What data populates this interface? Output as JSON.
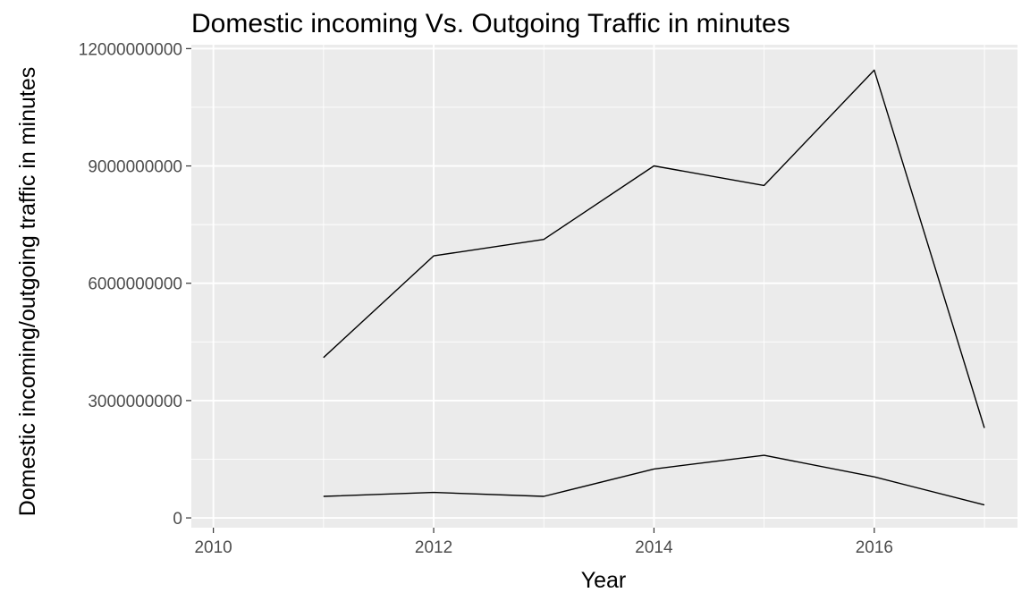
{
  "chart_data": {
    "type": "line",
    "title": "Domestic incoming Vs. Outgoing Traffic in minutes",
    "xlabel": "Year",
    "ylabel": "Domestic incoming/outgoing traffic in minutes",
    "xlim": [
      2009.8,
      2017.3
    ],
    "ylim": [
      -250000000,
      12100000000
    ],
    "x_ticks": [
      2010,
      2012,
      2014,
      2016
    ],
    "y_ticks": [
      0,
      3000000000,
      6000000000,
      9000000000,
      12000000000
    ],
    "x_tick_labels": [
      "2010",
      "2012",
      "2014",
      "2016"
    ],
    "y_tick_labels": [
      "0",
      "3000000000",
      "6000000000",
      "9000000000",
      "12000000000"
    ],
    "grid": true,
    "colors": {
      "panel": "#ebebeb",
      "grid": "#ffffff",
      "line": "#000000",
      "tick_text": "#4d4d4d"
    },
    "series": [
      {
        "x": [
          2011,
          2012,
          2013,
          2014,
          2015,
          2016,
          2017
        ],
        "values": [
          4100000000,
          6700000000,
          7120000000,
          9000000000,
          8500000000,
          11450000000,
          2300000000
        ]
      },
      {
        "x": [
          2011,
          2012,
          2013,
          2014,
          2015,
          2016,
          2017
        ],
        "values": [
          550000000,
          650000000,
          550000000,
          1250000000,
          1600000000,
          1050000000,
          330000000
        ]
      }
    ]
  }
}
